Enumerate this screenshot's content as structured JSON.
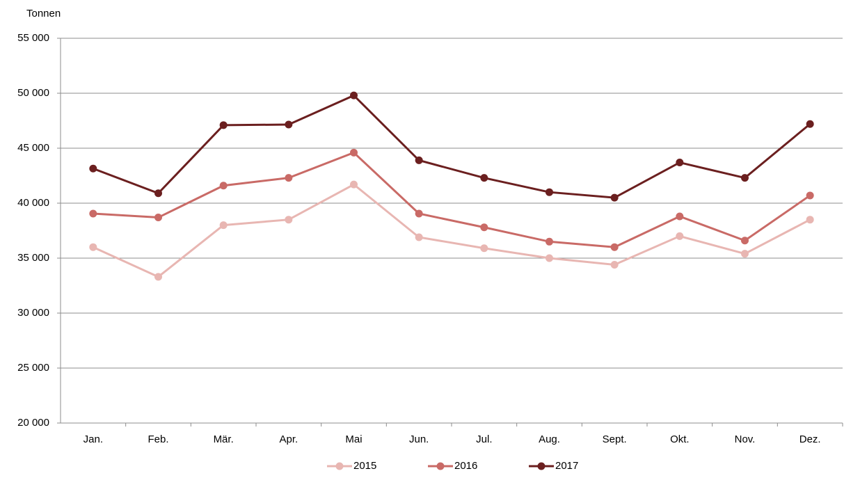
{
  "chart_data": {
    "type": "line",
    "y_label": "Tonnen",
    "categories": [
      "Jan.",
      "Feb.",
      "Mär.",
      "Apr.",
      "Mai",
      "Jun.",
      "Jul.",
      "Aug.",
      "Sept.",
      "Okt.",
      "Nov.",
      "Dez."
    ],
    "series": [
      {
        "name": "2015",
        "color": "#e8b6b2",
        "values": [
          36000,
          33300,
          38000,
          38500,
          41700,
          36900,
          35900,
          35000,
          34400,
          37000,
          35400,
          38500
        ]
      },
      {
        "name": "2016",
        "color": "#c96a66",
        "values": [
          39050,
          38700,
          41600,
          42300,
          44600,
          39050,
          37800,
          36500,
          36000,
          38800,
          36600,
          40700
        ]
      },
      {
        "name": "2017",
        "color": "#6b1f1f",
        "values": [
          43150,
          40900,
          47100,
          47150,
          49800,
          43900,
          42300,
          41000,
          40500,
          43700,
          42300,
          47200
        ]
      }
    ],
    "ylim": [
      20000,
      55000
    ],
    "yticks": [
      {
        "value": 20000,
        "label": "20 000"
      },
      {
        "value": 25000,
        "label": "25 000"
      },
      {
        "value": 30000,
        "label": "30 000"
      },
      {
        "value": 35000,
        "label": "35 000"
      },
      {
        "value": 40000,
        "label": "40 000"
      },
      {
        "value": 45000,
        "label": "45 000"
      },
      {
        "value": 50000,
        "label": "50 000"
      },
      {
        "value": 55000,
        "label": "55 000"
      }
    ],
    "grid": true,
    "legend": "bottom"
  }
}
